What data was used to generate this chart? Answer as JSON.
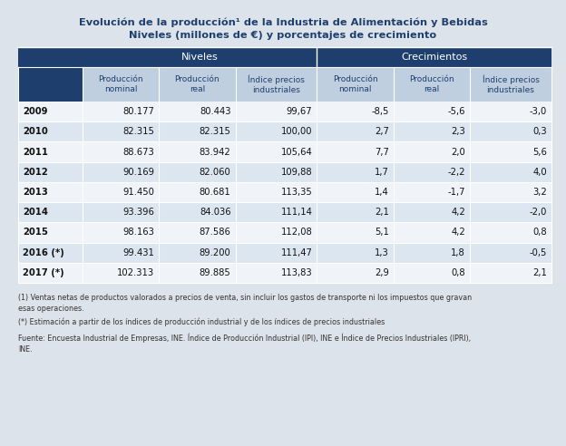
{
  "title_line1": "Evolución de la producción¹ de la Industria de Alimentación y Bebidas",
  "title_line2": "Niveles (millones de €) y porcentajes de crecimiento",
  "group_headers": [
    "Niveles",
    "Crecimientos"
  ],
  "col_headers": [
    "Producción\nnominal",
    "Producción\nreal",
    "Índice precios\nindustriales",
    "Producción\nnominal",
    "Producción\nreal",
    "Índice precios\nindustriales"
  ],
  "row_labels": [
    "2009",
    "2010",
    "2011",
    "2012",
    "2013",
    "2014",
    "2015",
    "2016 (*)",
    "2017 (*)"
  ],
  "data": [
    [
      "80.177",
      "80.443",
      "99,67",
      "-8,5",
      "-5,6",
      "-3,0"
    ],
    [
      "82.315",
      "82.315",
      "100,00",
      "2,7",
      "2,3",
      "0,3"
    ],
    [
      "88.673",
      "83.942",
      "105,64",
      "7,7",
      "2,0",
      "5,6"
    ],
    [
      "90.169",
      "82.060",
      "109,88",
      "1,7",
      "-2,2",
      "4,0"
    ],
    [
      "91.450",
      "80.681",
      "113,35",
      "1,4",
      "-1,7",
      "3,2"
    ],
    [
      "93.396",
      "84.036",
      "111,14",
      "2,1",
      "4,2",
      "-2,0"
    ],
    [
      "98.163",
      "87.586",
      "112,08",
      "5,1",
      "4,2",
      "0,8"
    ],
    [
      "99.431",
      "89.200",
      "111,47",
      "1,3",
      "1,8",
      "-0,5"
    ],
    [
      "102.313",
      "89.885",
      "113,83",
      "2,9",
      "0,8",
      "2,1"
    ]
  ],
  "footnote1": "(1) Ventas netas de productos valorados a precios de venta, sin incluir los gastos de transporte ni los impuestos que gravan\nesas operaciones.",
  "footnote2": "(*) Estimación a partir de los índices de producción industrial y de los índices de precios industriales",
  "footnote3": "Fuente: Encuesta Industrial de Empresas, INE. Índice de Producción Industrial (IPI), INE e Índice de Precios Industriales (IPRI),\nINE.",
  "bg_color": "#dde3ea",
  "header_dark_bg": "#1e3f6e",
  "col_header_bg": "#bfcfe0",
  "col_header_text": "#1e3f6e",
  "row_odd_bg": "#f0f4f8",
  "row_even_bg": "#dce6f0",
  "title_color": "#1e3f6e",
  "footnote_color": "#333333"
}
